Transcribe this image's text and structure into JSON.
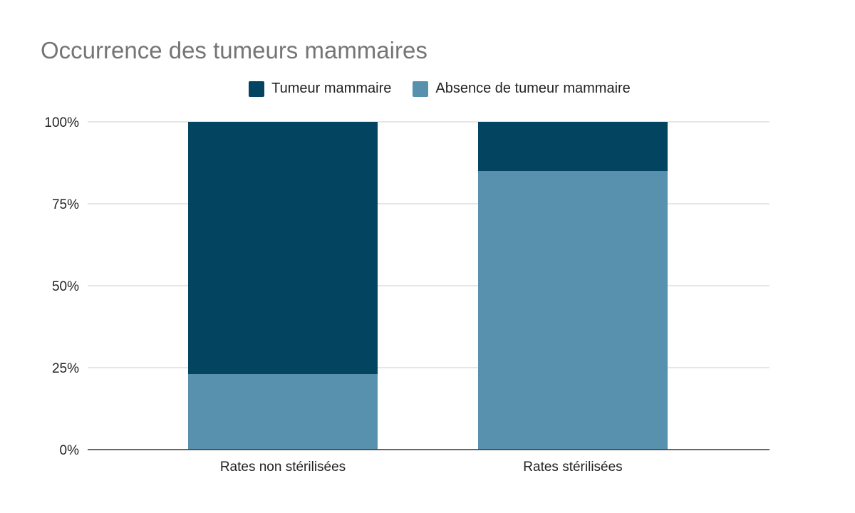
{
  "chart_data": {
    "type": "bar",
    "stacked": true,
    "percent_stacked": true,
    "title": "Occurrence des tumeurs mammaires",
    "categories": [
      "Rates non stérilisées",
      "Rates stérilisées"
    ],
    "series": [
      {
        "name": "Absence de tumeur mammaire",
        "values": [
          23,
          85
        ],
        "color": "#5891ae"
      },
      {
        "name": "Tumeur mammaire",
        "values": [
          77,
          15
        ],
        "color": "#034560"
      }
    ],
    "legend_order": [
      "Tumeur mammaire",
      "Absence de tumeur mammaire"
    ],
    "legend_position": "top-center",
    "ylim": [
      0,
      100
    ],
    "y_ticks": [
      "0%",
      "25%",
      "50%",
      "75%",
      "100%"
    ],
    "y_tick_values": [
      0,
      25,
      50,
      75,
      100
    ],
    "grid": true,
    "colors": {
      "title": "#757575",
      "axis_text": "#222222",
      "grid": "#cccccc",
      "baseline": "#333333"
    }
  }
}
